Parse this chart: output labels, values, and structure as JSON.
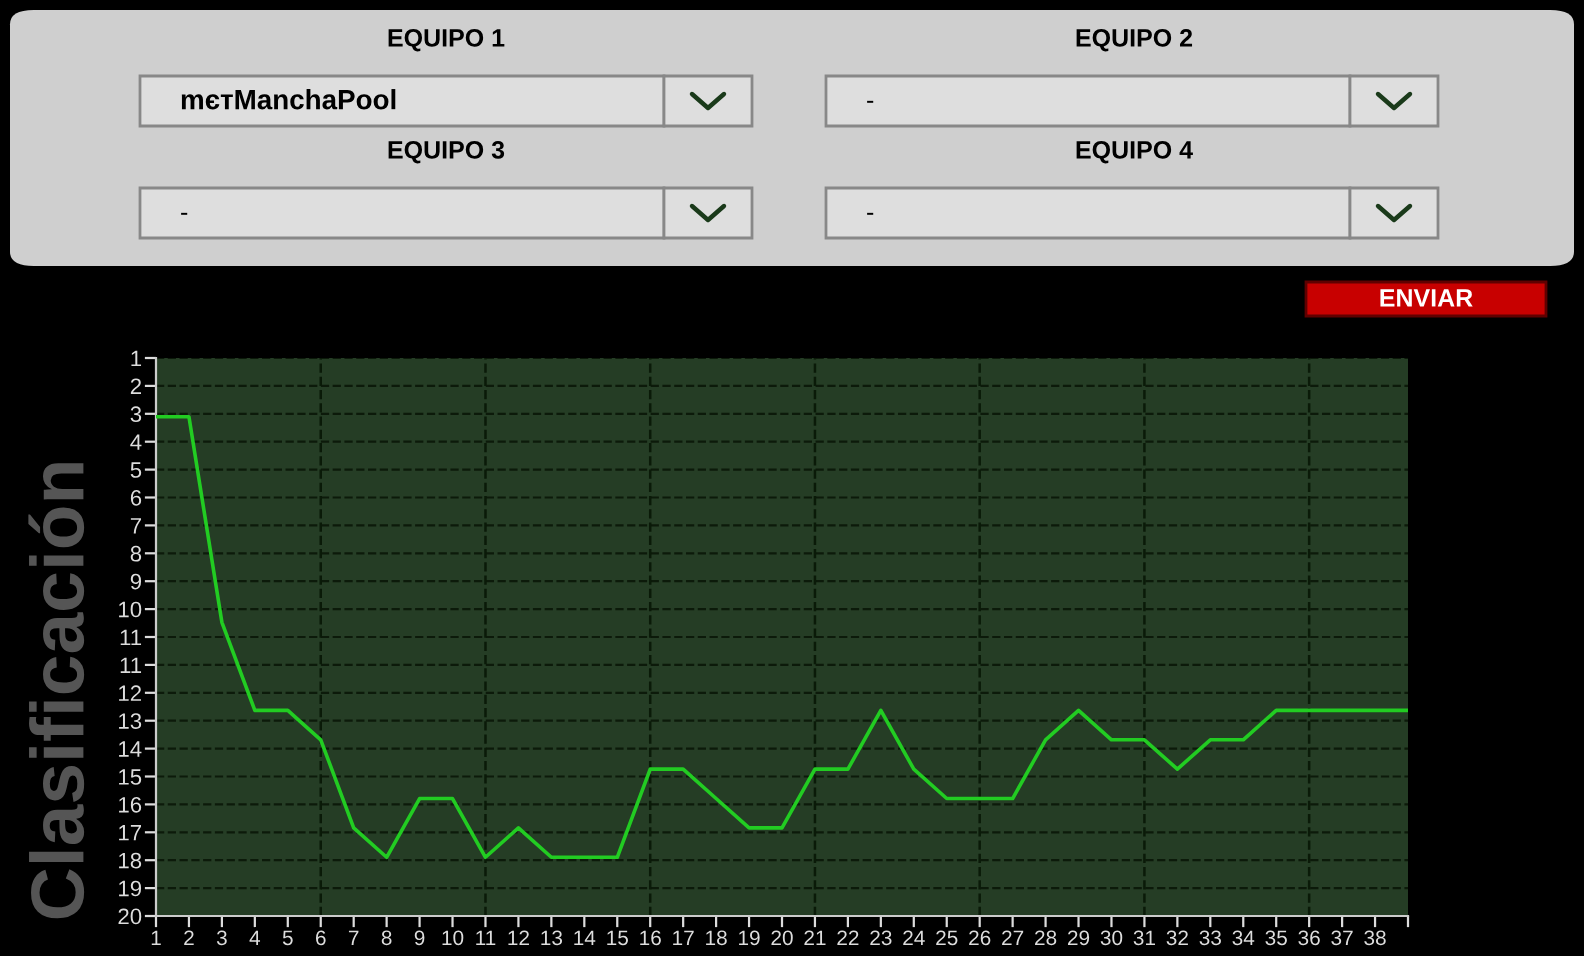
{
  "chart_data": {
    "type": "line",
    "ylabel": "Clasificación",
    "annotations": [
      "EQUIPO 1",
      "mєтManchaPool",
      "EQUIPO 2",
      "-",
      "EQUIPO 3",
      "-",
      "EQUIPO 4",
      "-",
      "ENVIAR"
    ],
    "x": [
      1,
      2,
      3,
      4,
      5,
      6,
      7,
      8,
      9,
      10,
      11,
      12,
      13,
      14,
      15,
      16,
      17,
      18,
      19,
      20,
      21,
      22,
      23,
      24,
      25,
      26,
      27,
      28,
      29,
      30,
      31,
      32,
      33,
      34,
      35,
      36,
      37,
      38,
      39
    ],
    "series": [
      {
        "color": "#22cc22",
        "values": [
          3,
          3,
          10,
          13,
          13,
          14,
          17,
          18,
          16,
          16,
          18,
          17,
          18,
          18,
          18,
          15,
          15,
          16,
          17,
          17,
          15,
          15,
          13,
          15,
          16,
          16,
          16,
          14,
          13,
          14,
          14,
          15,
          14,
          14,
          13,
          13,
          13,
          13,
          13
        ]
      }
    ],
    "xlim": [
      1,
      39
    ],
    "xticks": [
      1,
      2,
      3,
      4,
      5,
      6,
      7,
      8,
      9,
      10,
      11,
      12,
      13,
      14,
      15,
      16,
      17,
      18,
      19,
      20,
      21,
      22,
      23,
      24,
      25,
      26,
      27,
      28,
      29,
      30,
      31,
      32,
      33,
      34,
      35,
      36,
      37,
      38,
      {
        "value": 39,
        "label": null
      }
    ],
    "ylim": [
      20,
      1
    ],
    "yticks": [
      1,
      {
        "value": 1.95,
        "label": "2"
      },
      {
        "value": 2.9,
        "label": "3"
      },
      {
        "value": 3.85,
        "label": "4"
      },
      {
        "value": 4.8,
        "label": "5"
      },
      {
        "value": 5.75,
        "label": "6"
      },
      {
        "value": 6.7,
        "label": "7"
      },
      {
        "value": 7.65,
        "label": "8"
      },
      {
        "value": 8.6,
        "label": "9"
      },
      {
        "value": 9.55,
        "label": "10"
      },
      {
        "value": 10.5,
        "label": "11"
      },
      {
        "value": 11.45,
        "label": "11"
      },
      {
        "value": 12.4,
        "label": "12"
      },
      {
        "value": 13.35,
        "label": "13"
      },
      {
        "value": 14.3,
        "label": "14"
      },
      {
        "value": 15.25,
        "label": "15"
      },
      {
        "value": 16.2,
        "label": "16"
      },
      {
        "value": 17.15,
        "label": "17"
      },
      {
        "value": 18.1,
        "label": "18"
      },
      {
        "value": 19.05,
        "label": "19"
      },
      20
    ],
    "grid": "y",
    "ref_lines": [
      {
        "axis": "x",
        "value": 6,
        "color": "#0a1a08",
        "line_style": "dashed"
      },
      {
        "axis": "x",
        "value": 11,
        "color": "#0a1a08",
        "line_style": "dashed"
      },
      {
        "axis": "x",
        "value": 16,
        "color": "#0a1a08",
        "line_style": "dashed"
      },
      {
        "axis": "x",
        "value": 21,
        "color": "#0a1a08",
        "line_style": "dashed"
      },
      {
        "axis": "x",
        "value": 26,
        "color": "#0a1a08",
        "line_style": "dashed"
      },
      {
        "axis": "x",
        "value": 31,
        "color": "#0a1a08",
        "line_style": "dashed"
      },
      {
        "axis": "x",
        "value": 36,
        "color": "#0a1a08",
        "line_style": "dashed"
      }
    ],
    "marker": "none",
    "line_style": "solid",
    "legend": false
  }
}
